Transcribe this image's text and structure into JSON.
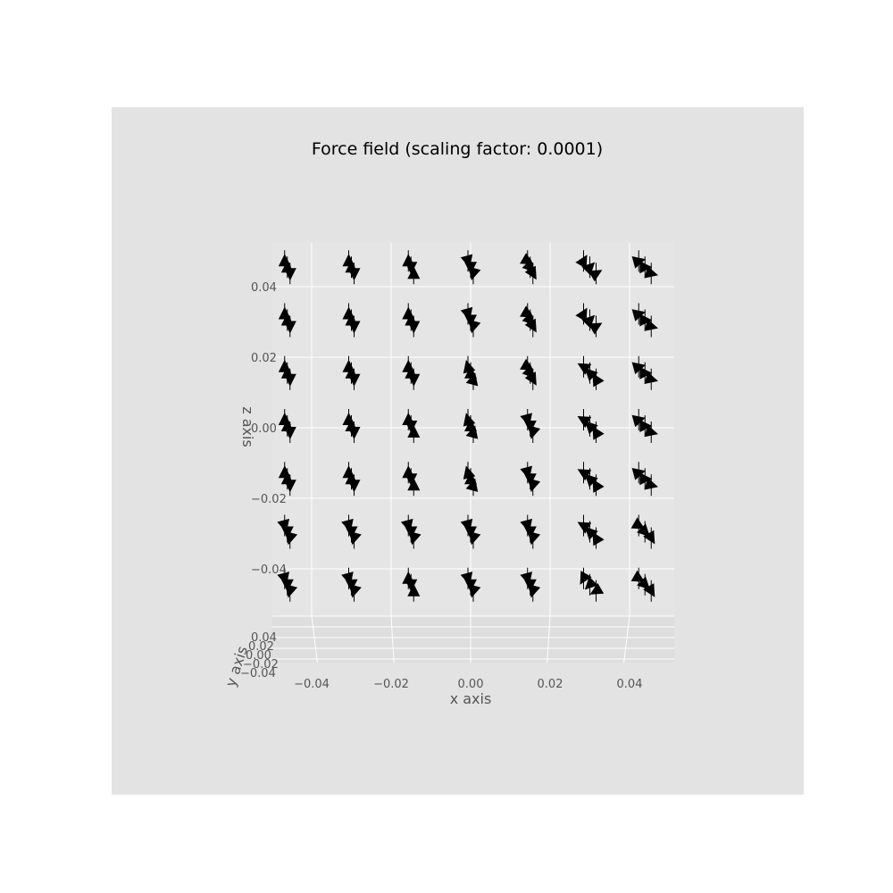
{
  "chart_data": {
    "type": "quiver3d",
    "title": "Force field (scaling factor: 0.0001)",
    "xlabel": "x axis",
    "ylabel": "y axis",
    "zlabel": "z axis",
    "x_ticks": [
      "−0.04",
      "−0.02",
      "0.00",
      "0.02",
      "0.04"
    ],
    "y_ticks": [
      "0.04",
      "0.02",
      "0.00",
      "−0.02",
      "−0.04"
    ],
    "z_ticks": [
      "0.04",
      "0.02",
      "0.00",
      "−0.02",
      "−0.04"
    ],
    "xlim": [
      -0.05,
      0.05
    ],
    "ylim": [
      -0.05,
      0.05
    ],
    "zlim": [
      -0.05,
      0.05
    ],
    "grid": true,
    "colors": {
      "figure_background": "#e3e3e3",
      "pane": "#e5e5e5",
      "grid": "#ffffff",
      "arrow": "#000000",
      "tick_text": "#555555",
      "title_text": "#000000"
    },
    "grid_points": {
      "x": [
        -0.045,
        -0.03,
        -0.015,
        0.0,
        0.015,
        0.03,
        0.045
      ],
      "z": [
        0.045,
        0.03,
        0.015,
        0.0,
        -0.015,
        -0.03,
        -0.045
      ]
    },
    "arrow_rows": [
      [
        "a",
        "a",
        "v",
        "d",
        "dr",
        "ur",
        "r"
      ],
      [
        "a",
        "a",
        "a",
        "d",
        "dr",
        "ur",
        "r"
      ],
      [
        "a",
        "a",
        "a",
        "u",
        "dr",
        "ul",
        "r"
      ],
      [
        "a",
        "a",
        "v",
        "u",
        "d",
        "ul",
        "r"
      ],
      [
        "a",
        "a",
        "v",
        "u",
        "d",
        "ul",
        "r"
      ],
      [
        "d",
        "d",
        "d",
        "d",
        "d",
        "ul",
        "dr"
      ],
      [
        "d",
        "d",
        "v",
        "d",
        "d",
        "dl",
        "dr"
      ]
    ]
  }
}
